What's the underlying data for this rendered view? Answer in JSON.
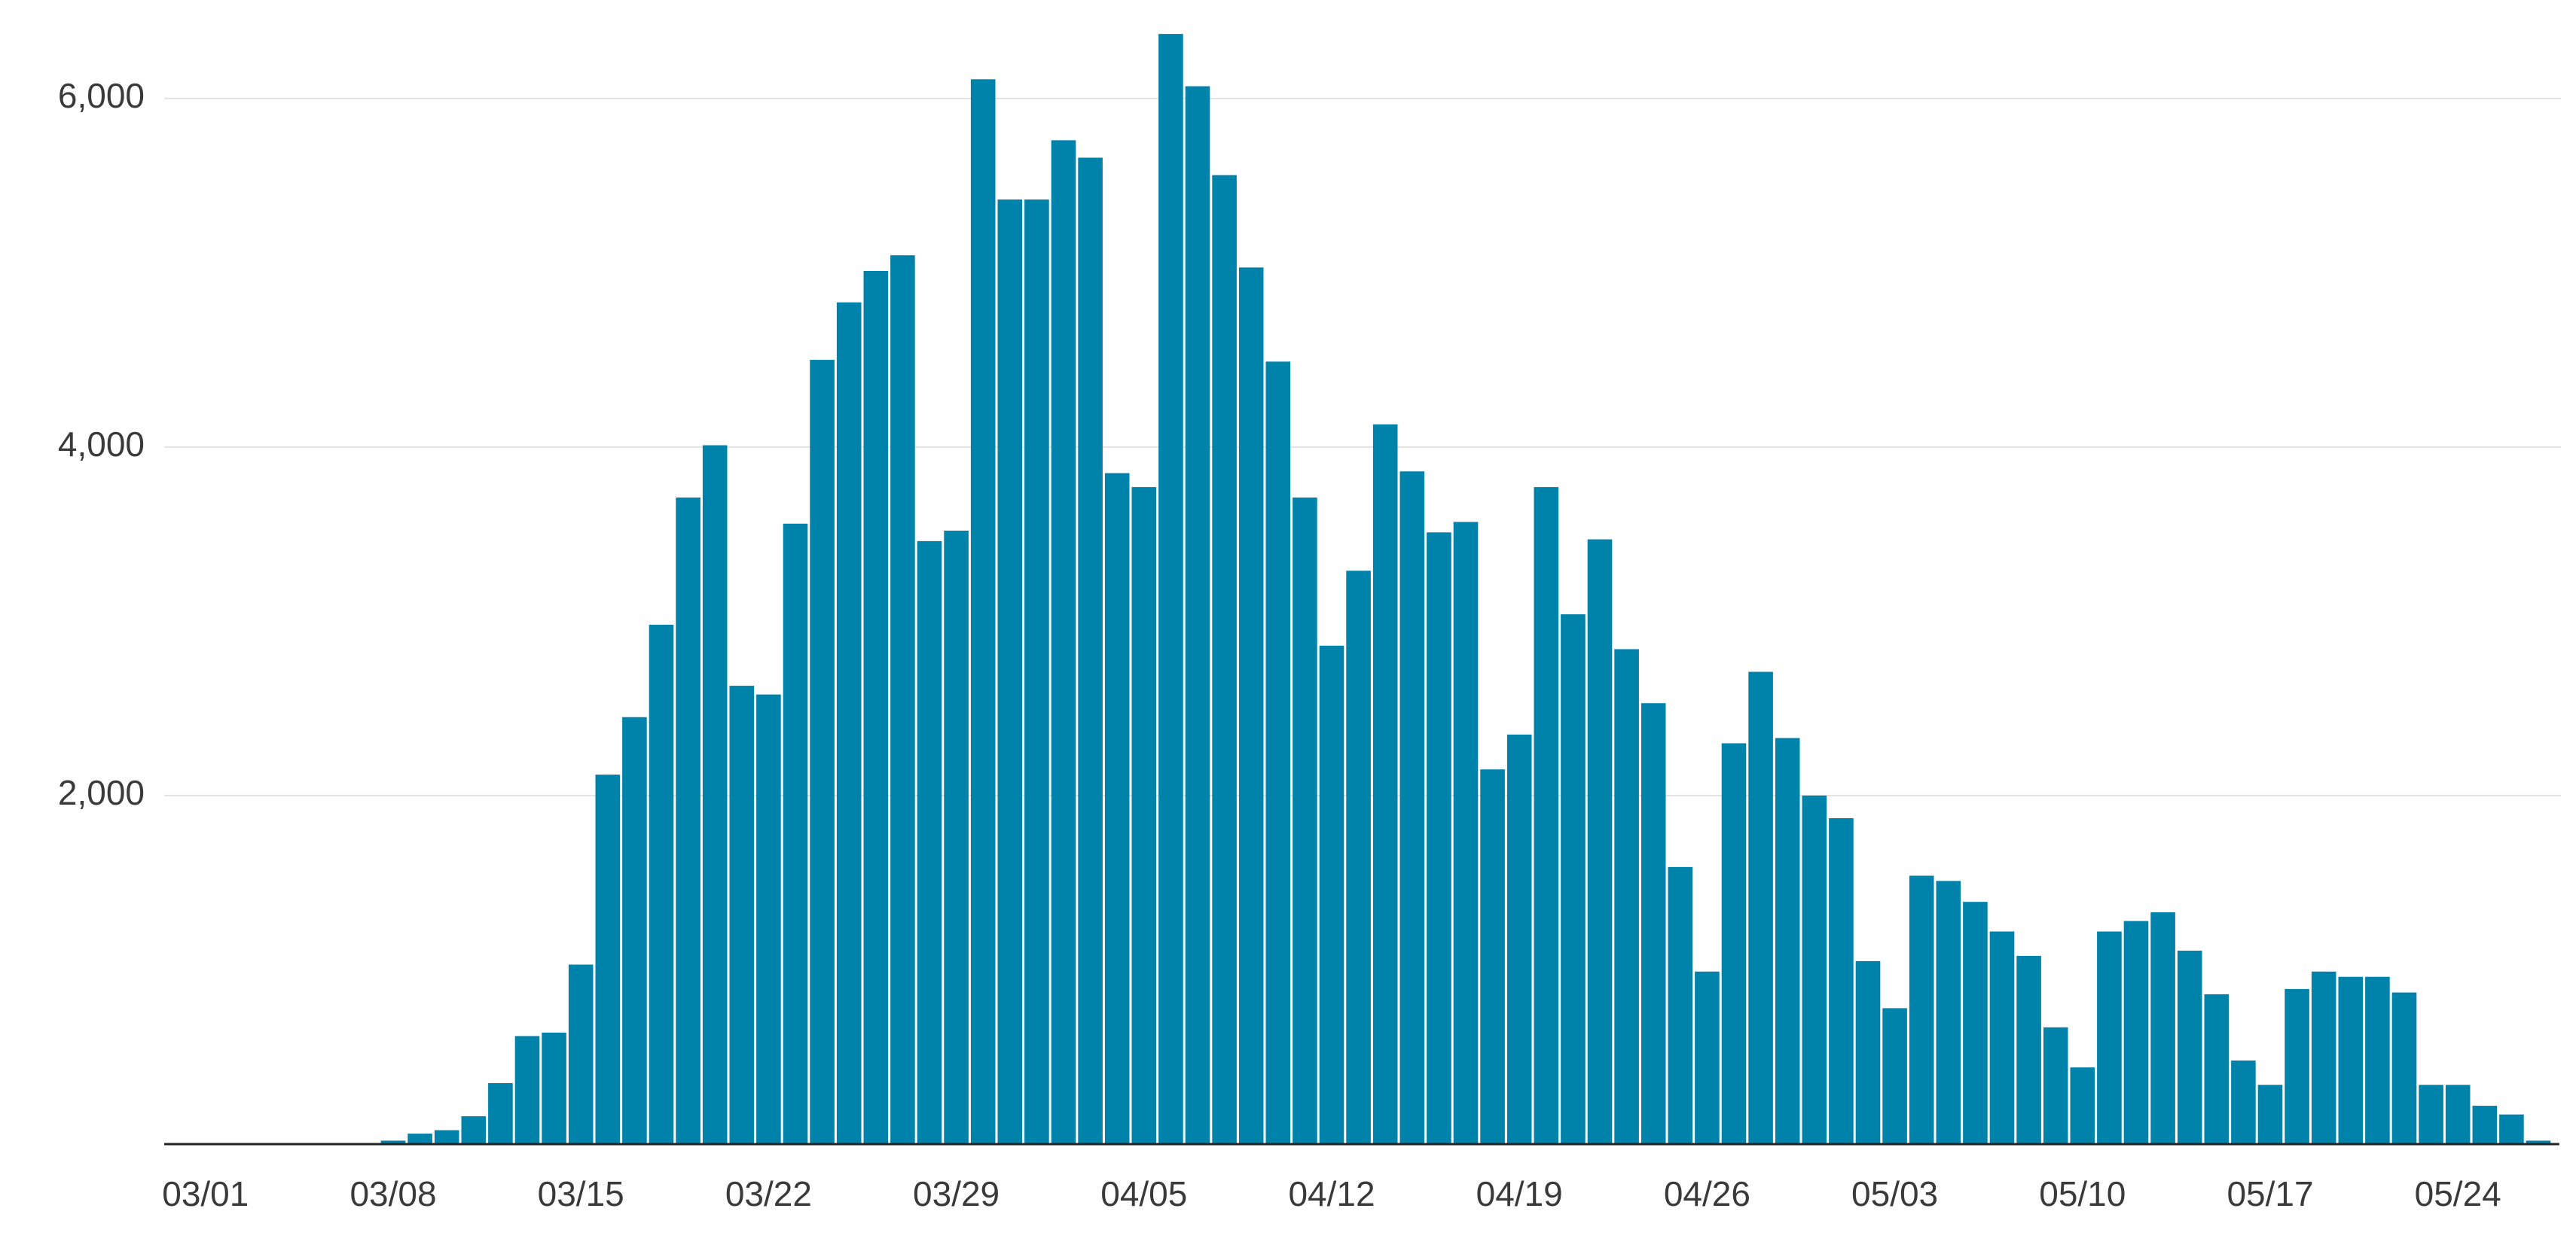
{
  "chart_data": {
    "type": "bar",
    "categories": [
      "03/01",
      null,
      null,
      null,
      null,
      null,
      null,
      "03/08",
      null,
      null,
      null,
      null,
      null,
      null,
      "03/15",
      null,
      null,
      null,
      null,
      null,
      null,
      "03/22",
      null,
      null,
      null,
      null,
      null,
      null,
      "03/29",
      null,
      null,
      null,
      null,
      null,
      null,
      "04/05",
      null,
      null,
      null,
      null,
      null,
      null,
      "04/12",
      null,
      null,
      null,
      null,
      null,
      null,
      "04/19",
      null,
      null,
      null,
      null,
      null,
      null,
      "04/26",
      null,
      null,
      null,
      null,
      null,
      null,
      "05/03",
      null,
      null,
      null,
      null,
      null,
      null,
      "05/10",
      null,
      null,
      null,
      null,
      null,
      null,
      "05/17",
      null,
      null,
      null,
      null,
      null,
      null,
      "05/24",
      null,
      null,
      null
    ],
    "values": [
      0,
      0,
      0,
      0,
      0,
      0,
      0,
      20,
      60,
      80,
      160,
      350,
      620,
      640,
      1030,
      2120,
      2450,
      2980,
      3710,
      4010,
      2630,
      2580,
      3560,
      4500,
      4830,
      5010,
      5100,
      3460,
      3520,
      6110,
      5420,
      5420,
      5760,
      5660,
      3850,
      3770,
      6370,
      6070,
      5560,
      5030,
      4490,
      3710,
      2860,
      3290,
      4130,
      3860,
      3510,
      3570,
      2150,
      2350,
      3770,
      3040,
      3470,
      2840,
      2530,
      1590,
      990,
      2300,
      2710,
      2330,
      2000,
      1870,
      1050,
      780,
      1540,
      1510,
      1390,
      1220,
      1080,
      670,
      440,
      1220,
      1280,
      1330,
      1110,
      860,
      480,
      340,
      890,
      990,
      960,
      960,
      870,
      340,
      340,
      220,
      170,
      20
    ],
    "color": "#0083ab",
    "ylim": [
      0,
      6500
    ],
    "yticks": [
      {
        "value": 2000,
        "label": "2,000"
      },
      {
        "value": 4000,
        "label": "4,000"
      },
      {
        "value": 6000,
        "label": "6,000"
      }
    ],
    "grid": true
  }
}
